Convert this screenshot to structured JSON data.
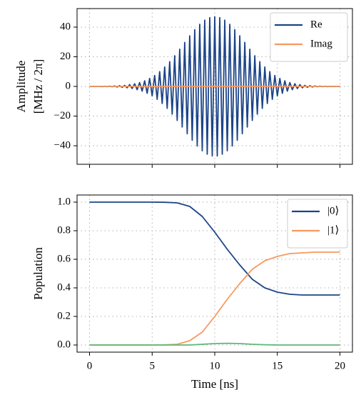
{
  "chart_data": [
    {
      "type": "line",
      "ylabel": [
        "Amplitude",
        "[MHz / 2π]"
      ],
      "x": [
        0,
        0.2,
        0.4,
        0.6,
        0.8,
        1,
        1.2,
        1.4,
        1.6,
        1.8,
        2,
        2.2,
        2.4,
        2.6,
        2.8,
        3,
        3.2,
        3.4,
        3.6,
        3.8,
        4,
        4.2,
        4.4,
        4.6,
        4.8,
        5,
        5.2,
        5.4,
        5.6,
        5.8,
        6,
        6.2,
        6.4,
        6.6,
        6.8,
        7,
        7.2,
        7.4,
        7.6,
        7.8,
        8,
        8.2,
        8.4,
        8.6,
        8.8,
        9,
        9.2,
        9.4,
        9.6,
        9.8,
        10,
        10.2,
        10.4,
        10.6,
        10.8,
        11,
        11.2,
        11.4,
        11.6,
        11.8,
        12,
        12.2,
        12.4,
        12.6,
        12.8,
        13,
        13.2,
        13.4,
        13.6,
        13.8,
        14,
        14.2,
        14.4,
        14.6,
        14.8,
        15,
        15.2,
        15.4,
        15.6,
        15.8,
        16,
        16.2,
        16.4,
        16.6,
        16.8,
        17,
        17.2,
        17.4,
        17.6,
        17.8,
        18,
        18.2,
        18.4,
        18.6,
        18.8,
        19,
        19.2,
        19.4,
        19.6,
        19.8,
        20
      ],
      "series": [
        {
          "name": "Re",
          "color": "#1c4488",
          "values": [
            0,
            0,
            0,
            0,
            0,
            -0.1,
            0.1,
            -0.1,
            0.2,
            -0.2,
            0.3,
            -0.4,
            0.5,
            -0.6,
            0.7,
            -0.9,
            1.2,
            -1.4,
            1.8,
            -2.2,
            2.6,
            -3.2,
            3.8,
            -4.6,
            5.4,
            -6.4,
            7.4,
            -8.7,
            10.0,
            -11.5,
            13.1,
            -14.8,
            16.7,
            -18.7,
            20.7,
            -22.9,
            25.1,
            -27.4,
            29.7,
            -31.9,
            34.1,
            -36.3,
            38.3,
            -40.2,
            41.9,
            -43.4,
            44.7,
            -45.7,
            46.4,
            -46.9,
            47.0,
            -46.9,
            46.4,
            -45.7,
            44.7,
            -43.4,
            41.9,
            -40.2,
            38.3,
            -36.3,
            34.1,
            -31.9,
            29.7,
            -27.4,
            25.1,
            -22.9,
            20.7,
            -18.7,
            16.7,
            -14.8,
            13.1,
            -11.5,
            10.0,
            -8.7,
            7.4,
            -6.4,
            5.4,
            -4.6,
            3.8,
            -3.2,
            2.6,
            -2.2,
            1.8,
            -1.4,
            1.2,
            -0.9,
            0.7,
            -0.6,
            0.5,
            -0.4,
            0.3,
            -0.2,
            0.2,
            -0.1,
            0.1,
            -0.1,
            0,
            0,
            0,
            0,
            0
          ]
        },
        {
          "name": "Imag",
          "color": "#f7995e",
          "x": [
            0,
            20
          ],
          "values": [
            0,
            0
          ]
        }
      ],
      "xlim": [
        -1,
        21
      ],
      "xticks": [
        0,
        5,
        10,
        15,
        20
      ],
      "xticklabels": false,
      "ylim": [
        -52.5,
        52.5
      ],
      "yticks": [
        {
          "value": -40,
          "label": "−40"
        },
        {
          "value": -20,
          "label": "−20"
        },
        0,
        20,
        40
      ],
      "grid": true,
      "legend": "upper right"
    },
    {
      "type": "line",
      "xlabel": "Time [ns]",
      "ylabel": [
        "Population"
      ],
      "x": [
        0,
        1,
        2,
        3,
        4,
        5,
        6,
        7,
        8,
        9,
        10,
        11,
        12,
        13,
        14,
        15,
        16,
        17,
        18,
        19,
        20
      ],
      "series": [
        {
          "name": "|0⟩",
          "color": "#1c4488",
          "values": [
            1,
            1,
            1,
            1,
            1,
            1,
            0.999,
            0.995,
            0.97,
            0.9,
            0.79,
            0.67,
            0.56,
            0.46,
            0.4,
            0.37,
            0.355,
            0.35,
            0.35,
            0.35,
            0.35
          ]
        },
        {
          "name": "|1⟩",
          "color": "#f7995e",
          "values": [
            0,
            0,
            0,
            0,
            0,
            0,
            0.001,
            0.005,
            0.03,
            0.09,
            0.2,
            0.32,
            0.43,
            0.53,
            0.59,
            0.62,
            0.64,
            0.645,
            0.65,
            0.65,
            0.65
          ]
        },
        {
          "color": "#5cb87a",
          "values": [
            0,
            0,
            0,
            0,
            0,
            0,
            0,
            0,
            0,
            0.005,
            0.01,
            0.012,
            0.01,
            0.005,
            0.002,
            0,
            0,
            0,
            0,
            0,
            0
          ]
        }
      ],
      "xlim": [
        -1,
        21
      ],
      "xticks": [
        0,
        5,
        10,
        15,
        20
      ],
      "xticklabels": true,
      "ylim": [
        -0.05,
        1.05
      ],
      "yticks": [
        {
          "value": 0,
          "label": "0.0"
        },
        0.2,
        0.4,
        0.6,
        0.8,
        {
          "value": 1,
          "label": "1.0"
        }
      ],
      "grid": true,
      "legend": "upper right"
    }
  ]
}
